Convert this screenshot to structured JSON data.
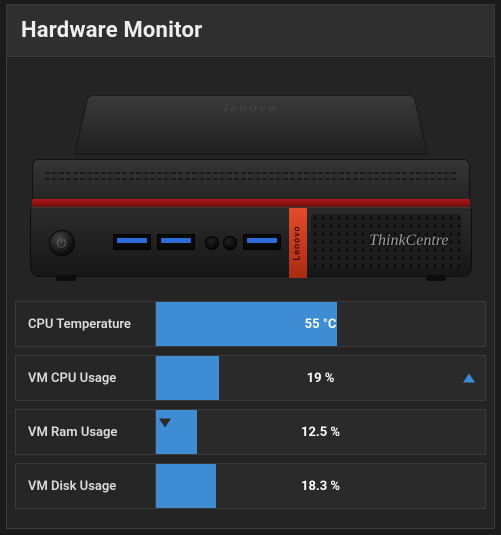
{
  "header": {
    "title": "Hardware Monitor"
  },
  "device": {
    "top_brand": "lenovo",
    "side_brand": "Lenovo",
    "front_brand": "ThinkCentre"
  },
  "colors": {
    "bar_fill": "#3d8cd4",
    "panel_bg": "#242424",
    "header_bg": "#2f2f2f",
    "row_bg": "#2a2a2a",
    "row_border": "#3c3c3c",
    "text": "#eeeeee",
    "trend_up": "#3d8cd4",
    "trend_down_bg": "#3d8cd4"
  },
  "metrics": {
    "cpu_temp": {
      "label": "CPU Temperature",
      "value_text": "55 °C",
      "percent": 55,
      "trend": "none"
    },
    "vm_cpu": {
      "label": "VM CPU Usage",
      "value_text": "19 %",
      "percent": 19,
      "trend": "up"
    },
    "vm_ram": {
      "label": "VM Ram Usage",
      "value_text": "12.5 %",
      "percent": 12.5,
      "trend": "down"
    },
    "vm_disk": {
      "label": "VM Disk Usage",
      "value_text": "18.3 %",
      "percent": 18.3,
      "trend": "none"
    }
  }
}
